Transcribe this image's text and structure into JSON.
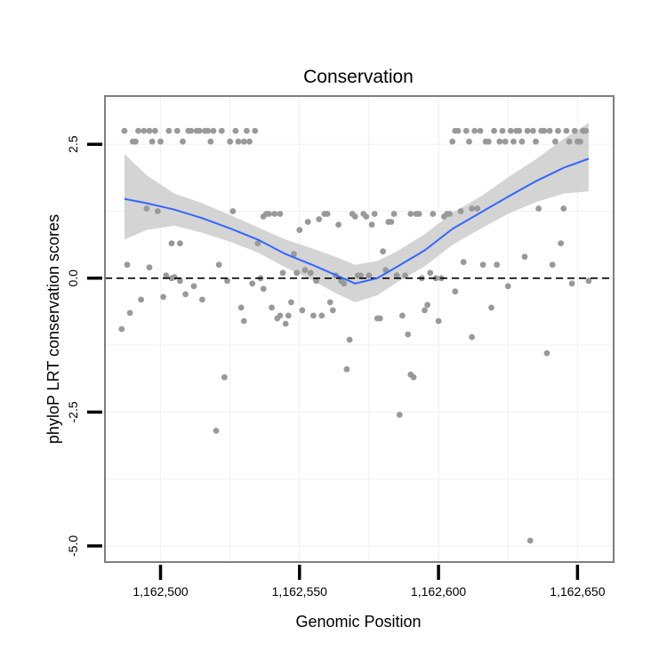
{
  "chart_data": {
    "type": "scatter",
    "title": "Conservation",
    "xlabel": "Genomic Position",
    "ylabel": "phyloP LRT conservation scores",
    "xlim": [
      1162480,
      1162663
    ],
    "ylim": [
      -5.3,
      3.4
    ],
    "x_ticks": [
      1162500,
      1162550,
      1162600,
      1162650
    ],
    "x_tick_labels": [
      "1,162,500",
      "1,162,550",
      "1,162,600",
      "1,162,650"
    ],
    "y_ticks": [
      -5.0,
      -2.5,
      0.0,
      2.5
    ],
    "y_tick_labels": [
      "-5.0",
      "-2.5",
      "0.0",
      "2.5"
    ],
    "reference_line": {
      "y": 0,
      "style": "dashed"
    },
    "colors": {
      "points": "#999999",
      "smooth": "#3366FF",
      "band": "#CCCCCC",
      "panel_border": "#7F7F7F",
      "grid": "#F2F2F2"
    },
    "points": [
      [
        1162486,
        -0.95
      ],
      [
        1162487,
        2.75
      ],
      [
        1162488,
        0.25
      ],
      [
        1162489,
        -0.65
      ],
      [
        1162490,
        2.55
      ],
      [
        1162491,
        2.55
      ],
      [
        1162492,
        2.75
      ],
      [
        1162493,
        -0.4
      ],
      [
        1162494,
        2.75
      ],
      [
        1162495,
        1.3
      ],
      [
        1162496,
        0.2
      ],
      [
        1162496,
        2.75
      ],
      [
        1162497,
        2.55
      ],
      [
        1162498,
        2.75
      ],
      [
        1162499,
        1.25
      ],
      [
        1162500,
        2.55
      ],
      [
        1162501,
        -0.35
      ],
      [
        1162502,
        0.05
      ],
      [
        1162503,
        2.75
      ],
      [
        1162504,
        0.65
      ],
      [
        1162504,
        0.0
      ],
      [
        1162505,
        0.02
      ],
      [
        1162506,
        2.75
      ],
      [
        1162507,
        0.65
      ],
      [
        1162507,
        -0.05
      ],
      [
        1162508,
        2.55
      ],
      [
        1162509,
        -0.3
      ],
      [
        1162510,
        2.75
      ],
      [
        1162511,
        2.75
      ],
      [
        1162512,
        -0.15
      ],
      [
        1162513,
        2.75
      ],
      [
        1162514,
        2.75
      ],
      [
        1162515,
        -0.4
      ],
      [
        1162516,
        2.75
      ],
      [
        1162517,
        2.75
      ],
      [
        1162518,
        2.55
      ],
      [
        1162519,
        2.75
      ],
      [
        1162520,
        -2.85
      ],
      [
        1162521,
        0.25
      ],
      [
        1162522,
        2.75
      ],
      [
        1162523,
        -1.85
      ],
      [
        1162524,
        -0.05
      ],
      [
        1162525,
        2.55
      ],
      [
        1162526,
        1.25
      ],
      [
        1162527,
        2.75
      ],
      [
        1162528,
        2.55
      ],
      [
        1162529,
        -0.55
      ],
      [
        1162530,
        2.55
      ],
      [
        1162530,
        -0.8
      ],
      [
        1162531,
        2.75
      ],
      [
        1162532,
        2.55
      ],
      [
        1162533,
        -0.1
      ],
      [
        1162534,
        2.75
      ],
      [
        1162535,
        0.65
      ],
      [
        1162536,
        0.0
      ],
      [
        1162537,
        1.15
      ],
      [
        1162537,
        -0.2
      ],
      [
        1162538,
        1.2
      ],
      [
        1162539,
        1.2
      ],
      [
        1162540,
        -0.55
      ],
      [
        1162541,
        1.2
      ],
      [
        1162542,
        -0.75
      ],
      [
        1162543,
        1.2
      ],
      [
        1162543,
        -0.7
      ],
      [
        1162544,
        0.1
      ],
      [
        1162545,
        -0.85
      ],
      [
        1162546,
        -0.7
      ],
      [
        1162547,
        -0.45
      ],
      [
        1162548,
        0.45
      ],
      [
        1162549,
        0.1
      ],
      [
        1162550,
        0.9
      ],
      [
        1162551,
        -0.6
      ],
      [
        1162552,
        0.15
      ],
      [
        1162553,
        1.05
      ],
      [
        1162554,
        0.1
      ],
      [
        1162555,
        -0.7
      ],
      [
        1162556,
        -0.05
      ],
      [
        1162557,
        1.1
      ],
      [
        1162558,
        -0.7
      ],
      [
        1162559,
        1.2
      ],
      [
        1162560,
        1.2
      ],
      [
        1162561,
        -0.45
      ],
      [
        1162562,
        -0.6
      ],
      [
        1162563,
        0.05
      ],
      [
        1162564,
        1.0
      ],
      [
        1162565,
        -0.05
      ],
      [
        1162566,
        -0.1
      ],
      [
        1162567,
        -1.7
      ],
      [
        1162568,
        -1.15
      ],
      [
        1162569,
        1.2
      ],
      [
        1162570,
        1.15
      ],
      [
        1162571,
        0.05
      ],
      [
        1162572,
        0.05
      ],
      [
        1162573,
        1.2
      ],
      [
        1162574,
        1.15
      ],
      [
        1162575,
        0.05
      ],
      [
        1162576,
        1.0
      ],
      [
        1162577,
        1.2
      ],
      [
        1162578,
        -0.75
      ],
      [
        1162579,
        -0.75
      ],
      [
        1162580,
        0.5
      ],
      [
        1162581,
        0.15
      ],
      [
        1162582,
        1.05
      ],
      [
        1162583,
        1.05
      ],
      [
        1162584,
        1.2
      ],
      [
        1162585,
        0.05
      ],
      [
        1162586,
        -2.55
      ],
      [
        1162587,
        -0.7
      ],
      [
        1162588,
        0.05
      ],
      [
        1162589,
        -1.05
      ],
      [
        1162590,
        -1.8
      ],
      [
        1162590,
        1.2
      ],
      [
        1162591,
        -1.85
      ],
      [
        1162592,
        1.2
      ],
      [
        1162593,
        1.2
      ],
      [
        1162594,
        0.0
      ],
      [
        1162595,
        -0.6
      ],
      [
        1162596,
        -0.5
      ],
      [
        1162597,
        0.1
      ],
      [
        1162598,
        1.2
      ],
      [
        1162599,
        0.0
      ],
      [
        1162600,
        -0.8
      ],
      [
        1162601,
        0.0
      ],
      [
        1162602,
        1.15
      ],
      [
        1162603,
        1.2
      ],
      [
        1162604,
        1.2
      ],
      [
        1162605,
        2.55
      ],
      [
        1162606,
        -0.25
      ],
      [
        1162606,
        2.75
      ],
      [
        1162607,
        2.75
      ],
      [
        1162608,
        1.25
      ],
      [
        1162609,
        0.3
      ],
      [
        1162610,
        2.75
      ],
      [
        1162611,
        2.55
      ],
      [
        1162612,
        1.3
      ],
      [
        1162612,
        -1.1
      ],
      [
        1162613,
        2.75
      ],
      [
        1162614,
        1.3
      ],
      [
        1162615,
        2.75
      ],
      [
        1162616,
        0.25
      ],
      [
        1162617,
        2.55
      ],
      [
        1162618,
        2.55
      ],
      [
        1162619,
        -0.55
      ],
      [
        1162620,
        2.75
      ],
      [
        1162621,
        0.25
      ],
      [
        1162622,
        2.55
      ],
      [
        1162623,
        2.75
      ],
      [
        1162624,
        2.55
      ],
      [
        1162625,
        -0.15
      ],
      [
        1162626,
        2.75
      ],
      [
        1162627,
        2.55
      ],
      [
        1162628,
        2.75
      ],
      [
        1162629,
        2.75
      ],
      [
        1162630,
        2.55
      ],
      [
        1162631,
        0.4
      ],
      [
        1162632,
        2.75
      ],
      [
        1162633,
        -4.9
      ],
      [
        1162634,
        2.75
      ],
      [
        1162635,
        2.55
      ],
      [
        1162636,
        1.3
      ],
      [
        1162637,
        2.75
      ],
      [
        1162638,
        2.75
      ],
      [
        1162639,
        -1.4
      ],
      [
        1162640,
        2.75
      ],
      [
        1162641,
        0.25
      ],
      [
        1162642,
        2.55
      ],
      [
        1162643,
        2.75
      ],
      [
        1162644,
        0.65
      ],
      [
        1162645,
        1.3
      ],
      [
        1162646,
        2.75
      ],
      [
        1162647,
        2.55
      ],
      [
        1162648,
        -0.1
      ],
      [
        1162649,
        2.75
      ],
      [
        1162650,
        2.55
      ],
      [
        1162651,
        2.55
      ],
      [
        1162652,
        2.75
      ],
      [
        1162653,
        2.75
      ],
      [
        1162654,
        -0.05
      ]
    ],
    "smooth": {
      "method": "loess",
      "x": [
        1162487,
        1162495,
        1162505,
        1162515,
        1162525,
        1162535,
        1162545,
        1162555,
        1162563,
        1162570,
        1162578,
        1162585,
        1162595,
        1162605,
        1162615,
        1162625,
        1162635,
        1162645,
        1162654
      ],
      "y": [
        1.48,
        1.4,
        1.28,
        1.12,
        0.93,
        0.72,
        0.45,
        0.24,
        0.06,
        -0.1,
        0.0,
        0.21,
        0.52,
        0.92,
        1.22,
        1.52,
        1.81,
        2.06,
        2.23
      ],
      "lower": [
        0.72,
        0.9,
        0.98,
        0.85,
        0.68,
        0.48,
        0.2,
        -0.05,
        -0.28,
        -0.45,
        -0.32,
        -0.08,
        0.22,
        0.62,
        0.92,
        1.2,
        1.42,
        1.58,
        1.62
      ],
      "upper": [
        2.32,
        1.92,
        1.58,
        1.4,
        1.18,
        0.95,
        0.72,
        0.55,
        0.4,
        0.25,
        0.32,
        0.5,
        0.82,
        1.22,
        1.52,
        1.88,
        2.22,
        2.6,
        2.9
      ]
    }
  }
}
